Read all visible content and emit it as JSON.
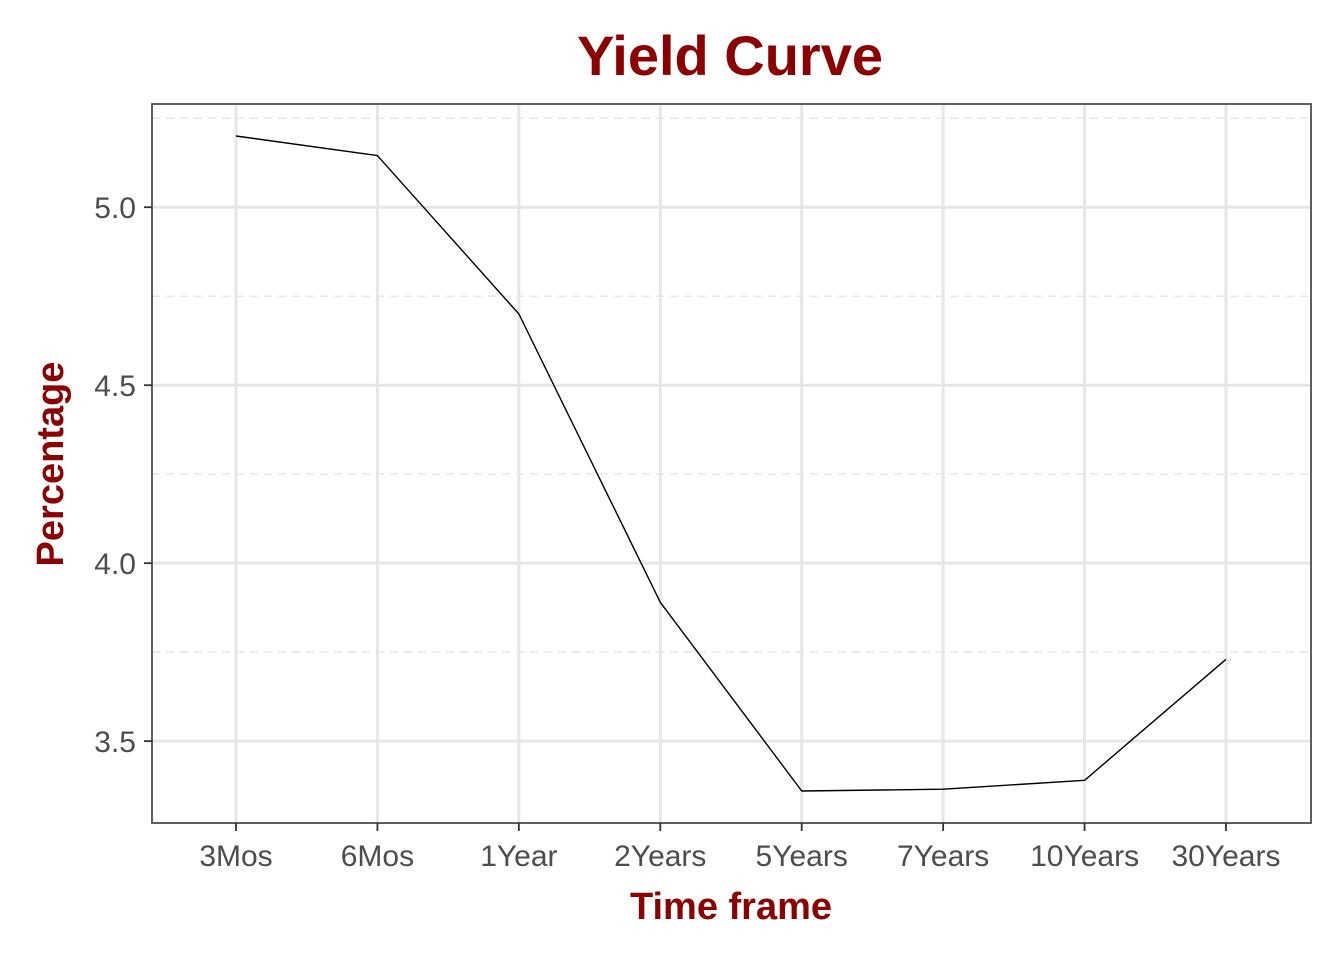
{
  "chart_data": {
    "type": "line",
    "title": "Yield Curve",
    "xlabel": "Time frame",
    "ylabel": "Percentage",
    "categories": [
      "3Mos",
      "6Mos",
      "1Year",
      "2Years",
      "5Years",
      "7Years",
      "10Years",
      "30Years"
    ],
    "values": [
      5.2,
      5.145,
      4.7,
      3.89,
      3.36,
      3.365,
      3.39,
      3.73
    ],
    "ylim": [
      3.27,
      5.29
    ],
    "yticks": [
      "3.5",
      "4.0",
      "4.5",
      "5.0"
    ],
    "grid": true,
    "legend": "none",
    "colors": {
      "title": "#8b0000",
      "axis_title": "#8b0000",
      "line": "#000000",
      "grid": "#e6e6e6",
      "panel_border": "#4d4d4d",
      "tick_label": "#4d4d4d"
    }
  }
}
